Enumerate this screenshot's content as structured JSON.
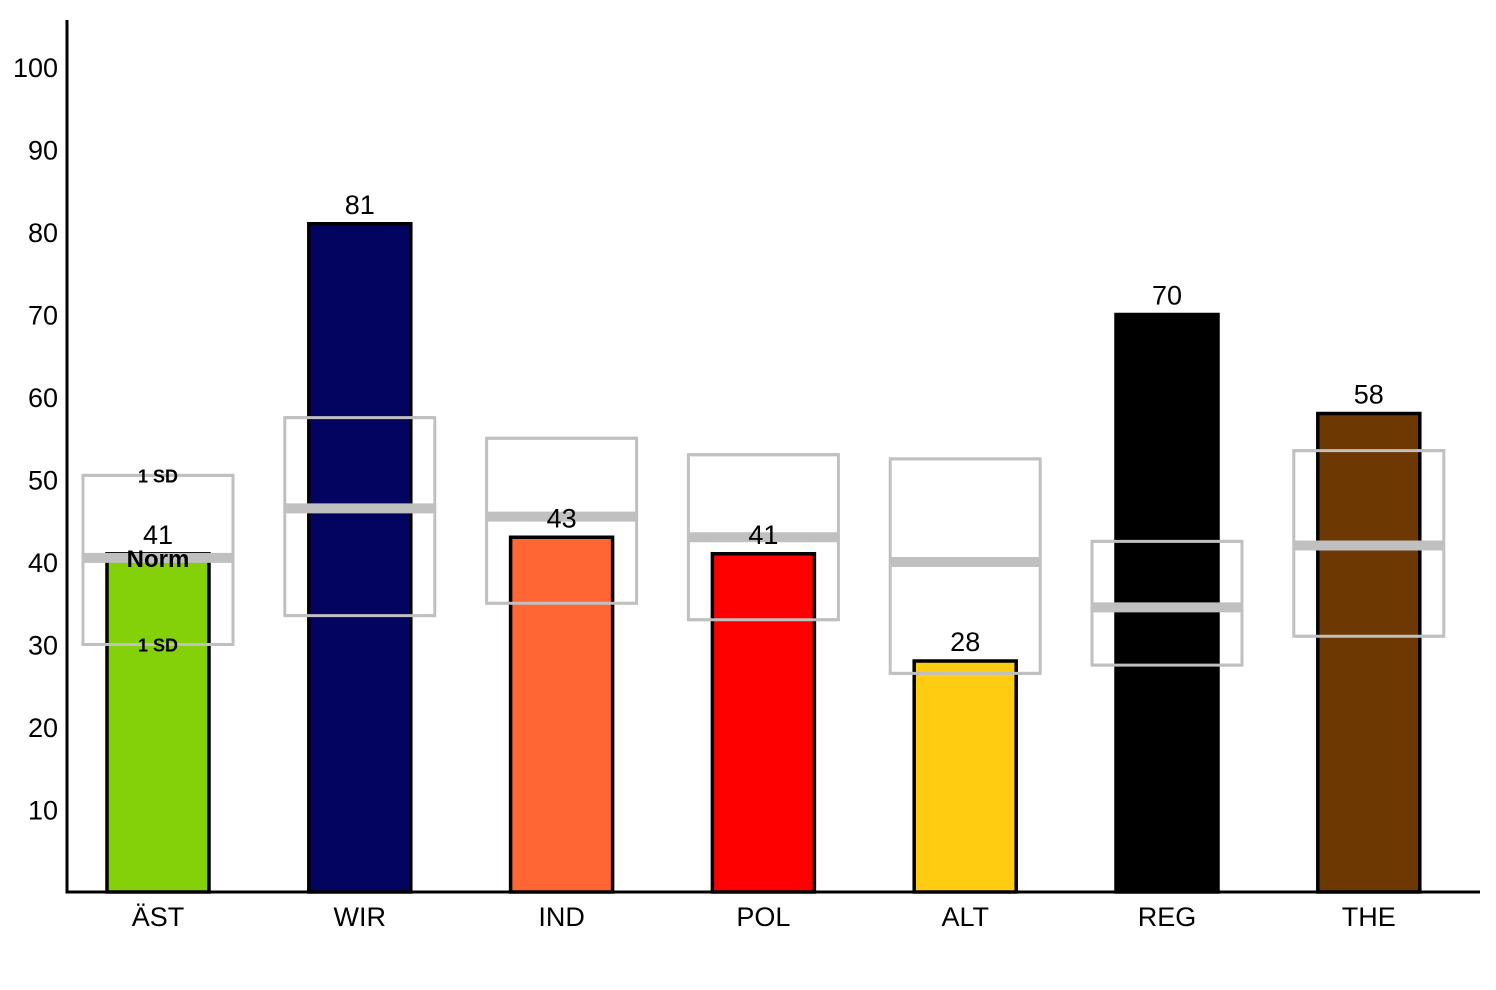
{
  "chart_data": {
    "type": "bar",
    "title": "",
    "xlabel": "",
    "ylabel": "",
    "ylim": [
      0,
      105
    ],
    "yticks": [
      10,
      20,
      30,
      40,
      50,
      60,
      70,
      80,
      90,
      100
    ],
    "categories": [
      "ÄST",
      "WIR",
      "IND",
      "POL",
      "ALT",
      "REG",
      "THE"
    ],
    "values": [
      41,
      81,
      43,
      41,
      28,
      70,
      58
    ],
    "colors": [
      "#84d10a",
      "#02045f",
      "#ff6633",
      "#ff0000",
      "#ffcc11",
      "#000000",
      "#6e3802"
    ],
    "norm": [
      40.5,
      46.5,
      45.5,
      43,
      40,
      34.5,
      42
    ],
    "norm_sd_low": [
      30,
      33.5,
      35,
      33,
      26.5,
      27.5,
      31
    ],
    "norm_sd_high": [
      50.5,
      57.5,
      55,
      53,
      52.5,
      42.5,
      53.5
    ],
    "annotations": {
      "norm_label": "Norm",
      "sd_upper_label": "1 SD",
      "sd_lower_label": "1 SD",
      "annotated_category": "ÄST"
    },
    "grid": false,
    "legend": "none"
  }
}
